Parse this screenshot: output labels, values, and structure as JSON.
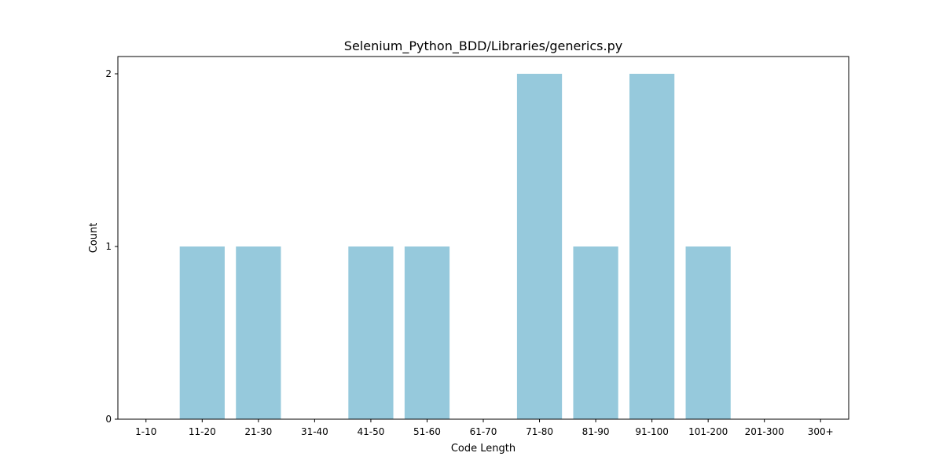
{
  "chart_data": {
    "type": "bar",
    "title": "Selenium_Python_BDD/Libraries/generics.py",
    "xlabel": "Code Length",
    "ylabel": "Count",
    "categories": [
      "1-10",
      "11-20",
      "21-30",
      "31-40",
      "41-50",
      "51-60",
      "61-70",
      "71-80",
      "81-90",
      "91-100",
      "101-200",
      "201-300",
      "300+"
    ],
    "values": [
      0,
      1,
      1,
      0,
      1,
      1,
      0,
      2,
      1,
      2,
      1,
      0,
      0
    ],
    "yticks": [
      "0",
      "1",
      "2"
    ],
    "ylim": [
      0,
      2.1
    ],
    "bar_color": "#96c9dc",
    "grid": false,
    "legend": "none"
  }
}
